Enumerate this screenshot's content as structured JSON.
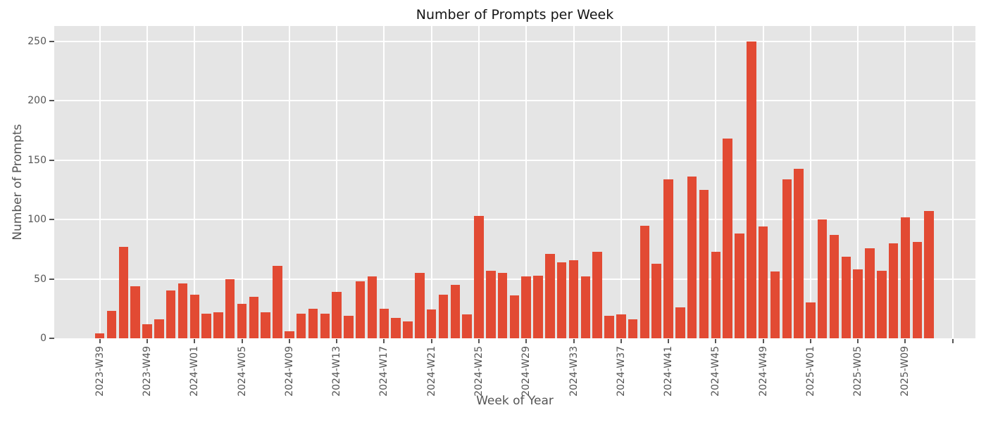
{
  "title": "Number of Prompts per Week",
  "chart_data": {
    "type": "bar",
    "title": "Number of Prompts per Week",
    "xlabel": "Week of Year",
    "ylabel": "Number of Prompts",
    "ylim": [
      0,
      263
    ],
    "yticks": [
      0,
      50,
      100,
      150,
      200,
      250
    ],
    "grid": true,
    "legend": false,
    "bar_color": "#E24A33",
    "plot_background": "#E5E5E5",
    "grid_color": "#FFFFFF",
    "tick_color": "#555555",
    "n_bars": 71,
    "values": [
      4,
      23,
      77,
      44,
      12,
      16,
      40,
      46,
      37,
      21,
      22,
      50,
      29,
      35,
      22,
      61,
      6,
      21,
      25,
      21,
      39,
      19,
      48,
      52,
      25,
      17,
      14,
      55,
      24,
      37,
      45,
      20,
      103,
      57,
      55,
      36,
      52,
      53,
      71,
      64,
      66,
      52,
      73,
      19,
      20,
      16,
      95,
      63,
      134,
      26,
      136,
      125,
      73,
      168,
      88,
      250,
      94,
      56,
      134,
      143,
      30,
      100,
      87,
      69,
      58,
      76,
      57,
      80,
      102,
      81,
      107
    ],
    "tick_indices": [
      0,
      4,
      8,
      12,
      16,
      20,
      24,
      28,
      32,
      36,
      40,
      44,
      48,
      52,
      56,
      60,
      64,
      68,
      72
    ],
    "tick_labels": [
      "2023-W39",
      "2023-W49",
      "2024-W01",
      "2024-W05",
      "2024-W09",
      "2024-W13",
      "2024-W17",
      "2024-W21",
      "2024-W25",
      "2024-W29",
      "2024-W33",
      "2024-W37",
      "2024-W41",
      "2024-W45",
      "2024-W49",
      "2025-W01",
      "2025-W05",
      "2025-W09",
      ""
    ]
  }
}
